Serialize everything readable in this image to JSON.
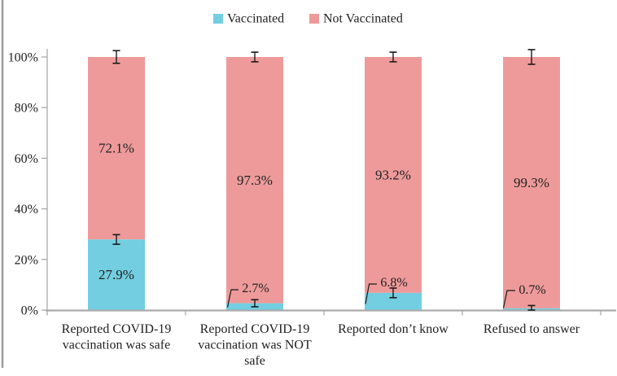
{
  "legend": {
    "items": [
      {
        "label": "Vaccinated",
        "color": "#72CEE0"
      },
      {
        "label": "Not Vaccinated",
        "color": "#EE9A9A"
      }
    ]
  },
  "chart_data": {
    "type": "bar",
    "stacked": true,
    "title": "",
    "categories": [
      "Reported COVID-19 vaccination was safe",
      "Reported COVID-19 vaccination was NOT safe",
      "Reported don’t know",
      "Refused to answer"
    ],
    "category_label_lines": [
      [
        "Reported COVID-19",
        "vaccination was safe"
      ],
      [
        "Reported COVID-19",
        "vaccination was NOT",
        "safe"
      ],
      [
        "Reported don’t know"
      ],
      [
        "Refused to answer"
      ]
    ],
    "series": [
      {
        "name": "Vaccinated",
        "color": "#72CEE0",
        "values": [
          27.9,
          2.7,
          6.8,
          0.7
        ],
        "labels": [
          "27.9%",
          "2.7%",
          "6.8%",
          "0.7%"
        ]
      },
      {
        "name": "Not Vaccinated",
        "color": "#EE9A9A",
        "values": [
          72.1,
          97.3,
          93.2,
          99.3
        ],
        "labels": [
          "72.1%",
          "97.3%",
          "93.2%",
          "99.3%"
        ]
      }
    ],
    "y_axis": {
      "ylim": [
        0,
        100
      ],
      "ticks": [
        0,
        20,
        40,
        60,
        80,
        100
      ],
      "tick_labels": [
        "0%",
        "20%",
        "40%",
        "60%",
        "80%",
        "100%"
      ]
    },
    "error_bars_est_pct": {
      "top_half": [
        2.5,
        1.9,
        1.9,
        2.9
      ],
      "split_half": [
        1.9,
        1.4,
        1.9,
        1.1
      ]
    },
    "legend_position": "top",
    "grid": "off",
    "colors": {
      "axis": "#ABABAB",
      "error_bar": "#1A1A1A",
      "text": "#222222",
      "background": "#FFFFFF",
      "frame_border": "#9C9C9C"
    }
  }
}
